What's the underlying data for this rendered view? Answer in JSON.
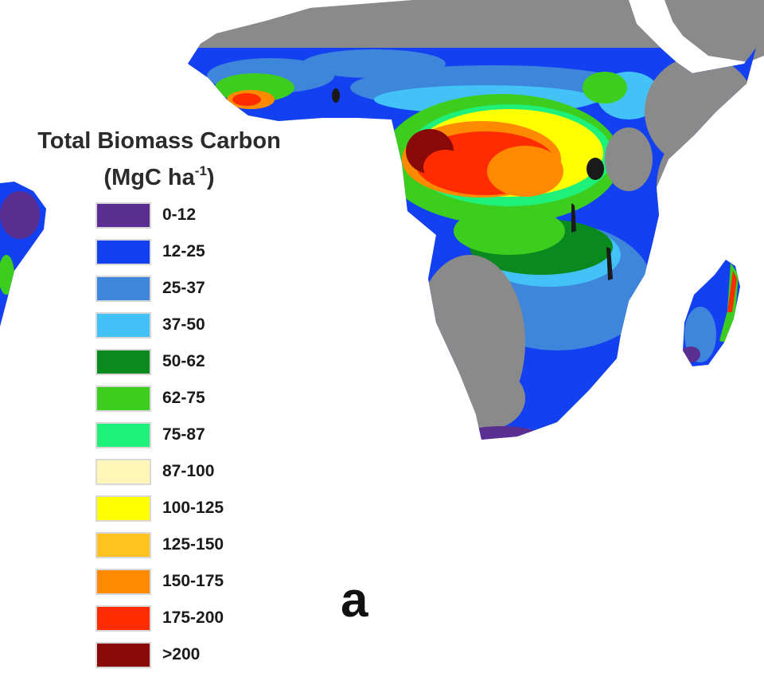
{
  "legend": {
    "title": "Total Biomass Carbon",
    "unit_base": "(MgC ha",
    "unit_exp": "-1",
    "unit_close": ")",
    "classes": [
      {
        "label": "0-12",
        "color": "#5b2f91"
      },
      {
        "label": "12-25",
        "color": "#1340f0"
      },
      {
        "label": "25-37",
        "color": "#3d86dc"
      },
      {
        "label": "37-50",
        "color": "#42c2f6"
      },
      {
        "label": "50-62",
        "color": "#0a8a1e"
      },
      {
        "label": "62-75",
        "color": "#3ccd1e"
      },
      {
        "label": "75-87",
        "color": "#1ef07a"
      },
      {
        "label": "87-100",
        "color": "#fff6b8"
      },
      {
        "label": "100-125",
        "color": "#ffff00"
      },
      {
        "label": "125-150",
        "color": "#ffc21e"
      },
      {
        "label": "150-175",
        "color": "#ff8a00"
      },
      {
        "label": "175-200",
        "color": "#ff2c00"
      },
      {
        "label": ">200",
        "color": "#8a0a0a"
      }
    ]
  },
  "panel_label": "a",
  "colors": {
    "land": "#8a8a8a",
    "water": "#1a1a1a",
    "background": "#ffffff"
  }
}
